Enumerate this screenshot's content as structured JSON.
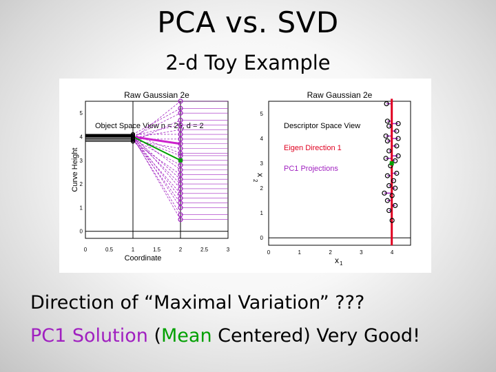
{
  "title": "PCA vs. SVD",
  "subtitle": "2-d Toy Example",
  "body": {
    "line1": "Direction of “Maximal Variation” ???",
    "line2_part1": "PC1 Solution",
    "line2_part2": " (",
    "line2_part3": "Mean",
    "line2_part4": " Centered)  Very Good!"
  },
  "colors": {
    "purple": "#a020c0",
    "green": "#00a000",
    "red": "#e00020",
    "magenta": "#cc20cc"
  },
  "chart_data": [
    {
      "type": "line",
      "title": "Raw Gaussian 2e",
      "annotation": "Object Space View n = 25, d = 2",
      "xlabel": "Coordinate",
      "ylabel": "Curve Height",
      "xlim": [
        0,
        3
      ],
      "ylim": [
        -0.3,
        5.5
      ],
      "xticks": [
        "0",
        "0.5",
        "1",
        "1.5",
        "2",
        "2.5",
        "3"
      ],
      "yticks": [
        "0",
        "1",
        "2",
        "3",
        "4",
        "5"
      ],
      "x": [
        1,
        2
      ],
      "series": [
        {
          "values": [
            3.9,
            5.5
          ]
        },
        {
          "values": [
            4.1,
            5.2
          ]
        },
        {
          "values": [
            4.0,
            5.0
          ]
        },
        {
          "values": [
            3.8,
            4.7
          ]
        },
        {
          "values": [
            4.05,
            4.5
          ]
        },
        {
          "values": [
            3.95,
            4.3
          ]
        },
        {
          "values": [
            4.1,
            4.1
          ]
        },
        {
          "values": [
            3.9,
            3.9
          ]
        },
        {
          "values": [
            4.0,
            3.7
          ]
        },
        {
          "values": [
            3.85,
            3.5
          ]
        },
        {
          "values": [
            4.1,
            3.3
          ]
        },
        {
          "values": [
            3.95,
            3.2
          ]
        },
        {
          "values": [
            4.0,
            3.0
          ]
        },
        {
          "values": [
            3.9,
            2.8
          ]
        },
        {
          "values": [
            4.1,
            2.6
          ]
        },
        {
          "values": [
            3.8,
            2.4
          ]
        },
        {
          "values": [
            4.0,
            2.2
          ]
        },
        {
          "values": [
            3.95,
            2.0
          ]
        },
        {
          "values": [
            4.1,
            1.8
          ]
        },
        {
          "values": [
            3.85,
            1.6
          ]
        },
        {
          "values": [
            4.0,
            1.4
          ]
        },
        {
          "values": [
            3.9,
            1.2
          ]
        },
        {
          "values": [
            4.05,
            1.0
          ]
        },
        {
          "values": [
            3.95,
            0.7
          ]
        },
        {
          "values": [
            4.0,
            0.5
          ]
        }
      ]
    },
    {
      "type": "scatter",
      "title": "Raw Gaussian 2e",
      "annotations": [
        "Descriptor Space View",
        "Eigen Direction 1",
        "PC1 Projections"
      ],
      "xlabel": "x1",
      "ylabel": "x2",
      "xlim": [
        0,
        4.6
      ],
      "ylim": [
        -0.3,
        5.5
      ],
      "xticks": [
        "0",
        "1",
        "2",
        "3",
        "4"
      ],
      "yticks": [
        "0",
        "1",
        "2",
        "3",
        "4",
        "5"
      ],
      "points": [
        [
          3.82,
          5.4
        ],
        [
          3.85,
          4.7
        ],
        [
          4.2,
          4.6
        ],
        [
          3.9,
          4.5
        ],
        [
          4.15,
          4.3
        ],
        [
          3.8,
          4.1
        ],
        [
          4.2,
          4.0
        ],
        [
          3.85,
          3.9
        ],
        [
          4.15,
          3.7
        ],
        [
          3.9,
          3.5
        ],
        [
          4.2,
          3.3
        ],
        [
          3.8,
          3.2
        ],
        [
          4.1,
          3.1
        ],
        [
          3.95,
          2.9
        ],
        [
          4.15,
          2.6
        ],
        [
          3.85,
          2.5
        ],
        [
          4.05,
          2.3
        ],
        [
          3.9,
          2.1
        ],
        [
          4.1,
          2.0
        ],
        [
          3.75,
          1.8
        ],
        [
          4.0,
          1.7
        ],
        [
          3.85,
          1.5
        ],
        [
          4.1,
          1.3
        ],
        [
          3.9,
          1.1
        ],
        [
          4.0,
          0.7
        ]
      ],
      "eigen_direction": [
        [
          3.99,
          -0.3
        ],
        [
          3.99,
          5.6
        ]
      ],
      "mean_point": [
        3.99,
        3.0
      ]
    }
  ]
}
